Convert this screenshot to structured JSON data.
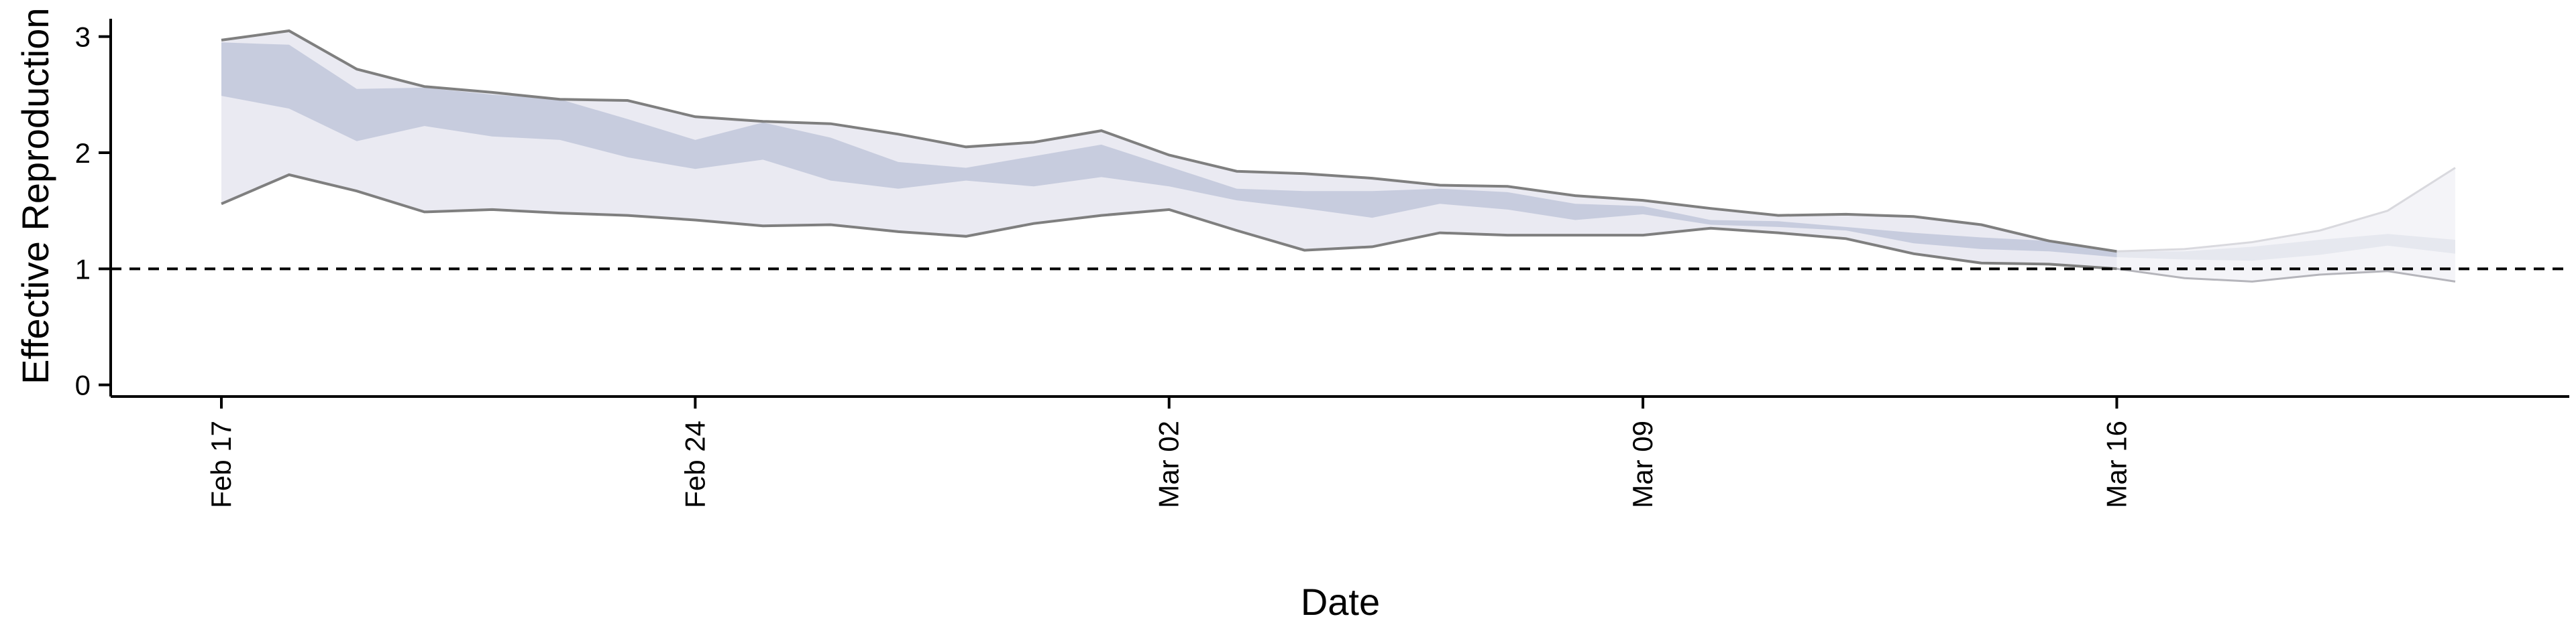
{
  "chart_data": {
    "type": "area",
    "xlabel": "Date",
    "ylabel": "Effective Reproduction no.",
    "ylim": [
      -0.1,
      3.2
    ],
    "yticks": [
      0,
      1,
      2,
      3
    ],
    "xticks": [
      "2020-02-17",
      "2020-02-24",
      "2020-03-02",
      "2020-03-09",
      "2020-03-16"
    ],
    "xtick_labels": [
      "Feb 17",
      "Feb 24",
      "Mar 02",
      "Mar 09",
      "Mar 16"
    ],
    "x": [
      "2020-02-17",
      "2020-02-18",
      "2020-02-19",
      "2020-02-20",
      "2020-02-21",
      "2020-02-22",
      "2020-02-23",
      "2020-02-24",
      "2020-02-25",
      "2020-02-26",
      "2020-02-27",
      "2020-02-28",
      "2020-02-29",
      "2020-03-01",
      "2020-03-02",
      "2020-03-03",
      "2020-03-04",
      "2020-03-05",
      "2020-03-06",
      "2020-03-07",
      "2020-03-08",
      "2020-03-09",
      "2020-03-10",
      "2020-03-11",
      "2020-03-12",
      "2020-03-13",
      "2020-03-14",
      "2020-03-15",
      "2020-03-16",
      "2020-03-17",
      "2020-03-18",
      "2020-03-19",
      "2020-03-20",
      "2020-03-21"
    ],
    "estimate_types": [
      "estimate",
      "estimate",
      "estimate",
      "estimate",
      "estimate",
      "estimate",
      "estimate",
      "estimate",
      "estimate",
      "estimate",
      "estimate",
      "estimate",
      "estimate",
      "estimate",
      "estimate",
      "estimate",
      "estimate",
      "estimate",
      "estimate",
      "estimate",
      "estimate",
      "estimate",
      "estimate",
      "estimate",
      "estimate",
      "estimate",
      "estimate",
      "estimate",
      "estimate",
      "forecast",
      "forecast",
      "forecast",
      "forecast",
      "forecast"
    ],
    "series": [
      {
        "name": "",
        "band": "90% credible interval",
        "upper": [
          2.97,
          3.05,
          2.72,
          2.57,
          2.52,
          2.46,
          2.45,
          2.31,
          2.27,
          2.25,
          2.16,
          2.05,
          2.09,
          2.19,
          1.98,
          1.84,
          1.82,
          1.78,
          1.72,
          1.71,
          1.63,
          1.59,
          1.52,
          1.46,
          1.47,
          1.45,
          1.38,
          1.24,
          1.15,
          1.17,
          1.23,
          1.33,
          1.5,
          1.87
        ],
        "lower": [
          1.56,
          1.81,
          1.67,
          1.49,
          1.51,
          1.48,
          1.46,
          1.42,
          1.37,
          1.38,
          1.32,
          1.28,
          1.39,
          1.46,
          1.51,
          1.33,
          1.16,
          1.19,
          1.31,
          1.29,
          1.29,
          1.29,
          1.35,
          1.31,
          1.26,
          1.13,
          1.05,
          1.04,
          1.0,
          0.92,
          0.89,
          0.95,
          0.98,
          0.89
        ]
      },
      {
        "name": "",
        "band": "50% credible interval",
        "upper": [
          2.95,
          2.93,
          2.55,
          2.56,
          2.5,
          2.46,
          2.29,
          2.11,
          2.26,
          2.13,
          1.92,
          1.87,
          1.97,
          2.07,
          1.88,
          1.69,
          1.67,
          1.67,
          1.69,
          1.66,
          1.56,
          1.54,
          1.42,
          1.41,
          1.36,
          1.31,
          1.27,
          1.24,
          1.15,
          1.15,
          1.19,
          1.25,
          1.3,
          1.25
        ],
        "lower": [
          2.49,
          2.38,
          2.1,
          2.23,
          2.14,
          2.11,
          1.96,
          1.86,
          1.94,
          1.76,
          1.69,
          1.76,
          1.71,
          1.79,
          1.71,
          1.59,
          1.52,
          1.44,
          1.56,
          1.51,
          1.42,
          1.47,
          1.38,
          1.36,
          1.33,
          1.22,
          1.17,
          1.15,
          1.1,
          1.08,
          1.07,
          1.12,
          1.2,
          1.13
        ]
      }
    ],
    "reference_line": {
      "y": 1,
      "style": "dashed"
    },
    "colors": {
      "outer_band": "#eaeaf2",
      "inner_band": "#c7ccde",
      "forecast_band": "#f4f4f8",
      "bound_line": "#7f7f7f",
      "reference": "#000000"
    },
    "grid": false,
    "legend": "none"
  }
}
